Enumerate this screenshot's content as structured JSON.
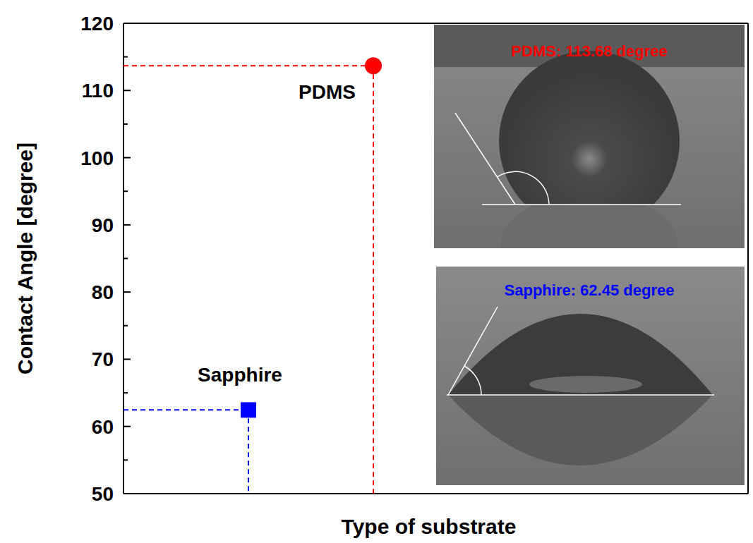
{
  "chart_data": {
    "type": "scatter",
    "x_label": "Type of substrate",
    "y_label": "Contact Angle [degree]",
    "categories": [
      null,
      null
    ],
    "series": [
      {
        "name": "Sapphire",
        "color": "#0000ff",
        "marker": "square",
        "values": [
          62.45,
          null
        ]
      },
      {
        "name": "PDMS",
        "color": "#ff0000",
        "marker": "circle",
        "values": [
          null,
          113.68
        ]
      }
    ],
    "annotations": [
      "PDMS: 113.68 degree",
      "Sapphire: 62.45 degree"
    ],
    "ylim": [
      50,
      120
    ],
    "yticks": [
      50,
      60,
      70,
      80,
      90,
      100,
      110,
      120
    ],
    "tick_labels": "y",
    "grid": false
  }
}
